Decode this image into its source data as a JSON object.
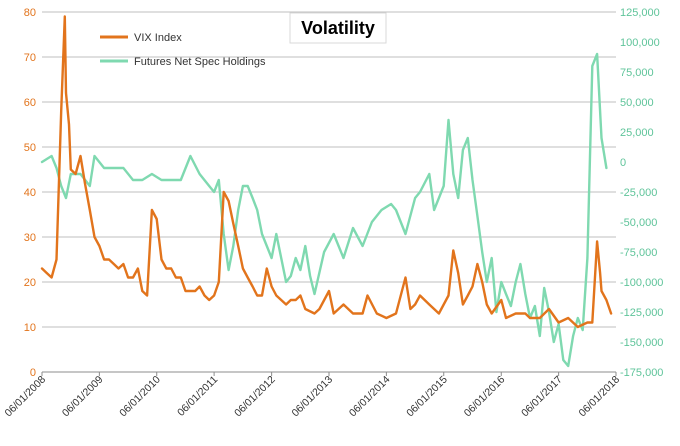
{
  "chart_data": {
    "type": "line",
    "title": "Volatility",
    "colors": {
      "vix": "#e2741c",
      "futures": "#7fd9b0",
      "grid": "#bfbfbf"
    },
    "legend_position": "top-left",
    "grid": true,
    "x_ticks": [
      "06/01/2008",
      "06/01/2009",
      "06/01/2010",
      "06/01/2011",
      "06/01/2012",
      "06/01/2013",
      "06/01/2014",
      "06/01/2015",
      "06/01/2016",
      "06/01/2017",
      "06/01/2018"
    ],
    "left_axis": {
      "ylim": [
        0,
        80
      ],
      "ticks": [
        "0",
        "10",
        "20",
        "30",
        "40",
        "50",
        "60",
        "70",
        "80"
      ]
    },
    "right_axis": {
      "ylim": [
        -175000,
        125000
      ],
      "ticks": [
        "-175,000",
        "-150,000",
        "-125,000",
        "-100,000",
        "-75,000",
        "-50,000",
        "-25,000",
        "0",
        "25,000",
        "50,000",
        "75,000",
        "100,000",
        "125,000"
      ]
    },
    "series": [
      {
        "name": "VIX Index",
        "axis": "left",
        "x": [
          "2008-06",
          "2008-07",
          "2008-08",
          "2008-09",
          "2008-10",
          "2008-10-24",
          "2008-11",
          "2008-11-20",
          "2008-12",
          "2009-01",
          "2009-02",
          "2009-03",
          "2009-04",
          "2009-05",
          "2009-06",
          "2009-07",
          "2009-08",
          "2009-09",
          "2009-10",
          "2009-11",
          "2009-12",
          "2010-01",
          "2010-02",
          "2010-03",
          "2010-04",
          "2010-05",
          "2010-06",
          "2010-07",
          "2010-08",
          "2010-09",
          "2010-10",
          "2010-11",
          "2010-12",
          "2011-01",
          "2011-02",
          "2011-03",
          "2011-04",
          "2011-05",
          "2011-06",
          "2011-07",
          "2011-08",
          "2011-09",
          "2011-10",
          "2011-11",
          "2011-12",
          "2012-01",
          "2012-02",
          "2012-03",
          "2012-04",
          "2012-05",
          "2012-06",
          "2012-07",
          "2012-08",
          "2012-09",
          "2012-10",
          "2012-11",
          "2012-12",
          "2013-01",
          "2013-03",
          "2013-04",
          "2013-06",
          "2013-07",
          "2013-09",
          "2013-11",
          "2014-01",
          "2014-02",
          "2014-04",
          "2014-06",
          "2014-08",
          "2014-10",
          "2014-11",
          "2014-12",
          "2015-01",
          "2015-03",
          "2015-05",
          "2015-07",
          "2015-08",
          "2015-09",
          "2015-10",
          "2015-11",
          "2015-12",
          "2016-01",
          "2016-02",
          "2016-03",
          "2016-04",
          "2016-06",
          "2016-07",
          "2016-09",
          "2016-11",
          "2016-12",
          "2017-02",
          "2017-04",
          "2017-06",
          "2017-08",
          "2017-10",
          "2017-12",
          "2018-01",
          "2018-02",
          "2018-02-20",
          "2018-03",
          "2018-04",
          "2018-05"
        ],
        "values": [
          23,
          22,
          21,
          25,
          58,
          79,
          62,
          55,
          45,
          44,
          48,
          42,
          36,
          30,
          28,
          25,
          25,
          24,
          23,
          24,
          21,
          21,
          23,
          18,
          17,
          36,
          34,
          25,
          23,
          23,
          21,
          21,
          18,
          18,
          18,
          19,
          17,
          16,
          17,
          20,
          40,
          38,
          33,
          28,
          23,
          21,
          19,
          17,
          17,
          23,
          19,
          17,
          16,
          15,
          16,
          16,
          17,
          14,
          13,
          14,
          18,
          13,
          15,
          13,
          13,
          17,
          13,
          12,
          13,
          21,
          14,
          15,
          17,
          15,
          13,
          17,
          27,
          22,
          15,
          17,
          19,
          24,
          20,
          15,
          13,
          16,
          12,
          13,
          13,
          12,
          12,
          14,
          11,
          12,
          10,
          11,
          11,
          29,
          22,
          18,
          16,
          13
        ]
      },
      {
        "name": "Futures Net Spec Holdings",
        "axis": "right",
        "x": [
          "2008-06",
          "2008-08",
          "2008-09",
          "2008-10",
          "2008-11",
          "2008-12",
          "2009-02",
          "2009-04",
          "2009-05",
          "2009-07",
          "2009-09",
          "2009-11",
          "2010-01",
          "2010-03",
          "2010-05",
          "2010-07",
          "2010-09",
          "2010-11",
          "2011-01",
          "2011-03",
          "2011-05",
          "2011-06",
          "2011-07",
          "2011-08",
          "2011-09",
          "2011-10",
          "2011-11",
          "2011-12",
          "2012-01",
          "2012-02",
          "2012-03",
          "2012-04",
          "2012-05",
          "2012-06",
          "2012-07",
          "2012-08",
          "2012-09",
          "2012-10",
          "2012-11",
          "2012-12",
          "2013-01",
          "2013-02",
          "2013-03",
          "2013-05",
          "2013-07",
          "2013-09",
          "2013-11",
          "2014-01",
          "2014-03",
          "2014-05",
          "2014-07",
          "2014-08",
          "2014-10",
          "2014-12",
          "2015-01",
          "2015-03",
          "2015-04",
          "2015-05",
          "2015-06",
          "2015-07",
          "2015-08",
          "2015-09",
          "2015-10",
          "2015-11",
          "2015-12",
          "2016-01",
          "2016-02",
          "2016-03",
          "2016-04",
          "2016-05",
          "2016-06",
          "2016-07",
          "2016-08",
          "2016-09",
          "2016-10",
          "2016-11",
          "2016-12",
          "2017-01",
          "2017-02",
          "2017-03",
          "2017-04",
          "2017-05",
          "2017-06",
          "2017-07",
          "2017-08",
          "2017-09",
          "2017-10",
          "2017-11",
          "2017-12",
          "2018-01",
          "2018-02",
          "2018-03",
          "2018-04"
        ],
        "values": [
          0,
          5000,
          -5000,
          -20000,
          -30000,
          -10000,
          -10000,
          -20000,
          5000,
          -5000,
          -5000,
          -5000,
          -15000,
          -15000,
          -10000,
          -15000,
          -15000,
          -15000,
          5000,
          -10000,
          -20000,
          -25000,
          -15000,
          -60000,
          -90000,
          -70000,
          -40000,
          -20000,
          -20000,
          -30000,
          -40000,
          -60000,
          -70000,
          -80000,
          -60000,
          -80000,
          -100000,
          -95000,
          -80000,
          -90000,
          -70000,
          -95000,
          -110000,
          -75000,
          -60000,
          -80000,
          -55000,
          -70000,
          -50000,
          -40000,
          -35000,
          -40000,
          -60000,
          -30000,
          -25000,
          -10000,
          -40000,
          -30000,
          -20000,
          35000,
          -10000,
          -30000,
          10000,
          20000,
          -15000,
          -45000,
          -75000,
          -100000,
          -80000,
          -125000,
          -100000,
          -110000,
          -120000,
          -100000,
          -85000,
          -110000,
          -130000,
          -120000,
          -145000,
          -105000,
          -125000,
          -150000,
          -135000,
          -165000,
          -170000,
          -145000,
          -130000,
          -140000,
          -80000,
          80000,
          90000,
          20000,
          -5000
        ]
      }
    ]
  }
}
